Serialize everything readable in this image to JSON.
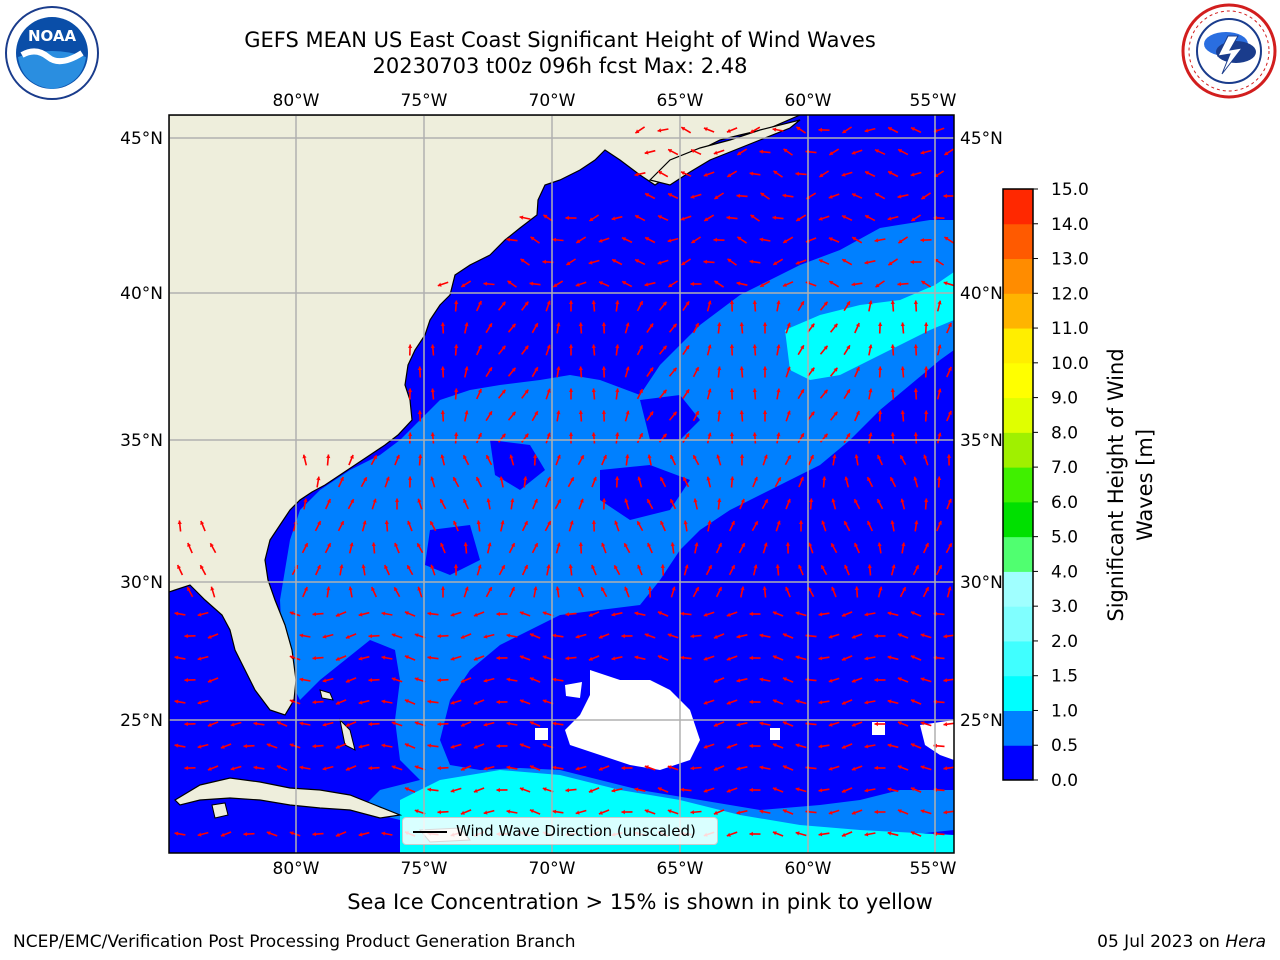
{
  "header": {
    "title_line1": "GEFS MEAN US East Coast Significant Height of Wind Waves",
    "title_line2": "20230703 t00z 096h fcst   Max: 2.48"
  },
  "logos": {
    "left": {
      "icon": "noaa-logo-icon",
      "text": "NOAA"
    },
    "right": {
      "icon": "national-weather-service-logo-icon",
      "text": "NATIONAL WEATHER SERVICE"
    }
  },
  "map": {
    "lon_labels": [
      "80°W",
      "75°W",
      "70°W",
      "65°W",
      "60°W",
      "55°W"
    ],
    "lat_labels": [
      "45°N",
      "40°N",
      "35°N",
      "30°N",
      "25°N"
    ],
    "colors": {
      "land": "#eeeedc",
      "ocean_low": "#0000ff",
      "ocean_mid": "#0080ff",
      "ocean_high": "#00ffff",
      "arrow": "#ff0000",
      "grid": "#b0b0b0"
    }
  },
  "legend": {
    "label": "Wind Wave Direction (unscaled)"
  },
  "colorbar": {
    "title_line1": "Significant Height of Wind",
    "title_line2": "Waves [m]",
    "ticks": [
      "0.0",
      "0.5",
      "1.0",
      "1.5",
      "2.0",
      "3.0",
      "4.0",
      "5.0",
      "6.0",
      "7.0",
      "8.0",
      "9.0",
      "10.0",
      "11.0",
      "12.0",
      "13.0",
      "14.0",
      "15.0"
    ],
    "colors": [
      "#0000ff",
      "#0080ff",
      "#00ffff",
      "#40ffff",
      "#80ffff",
      "#a0ffff",
      "#50ff70",
      "#00e000",
      "#40f000",
      "#a0f000",
      "#e0ff00",
      "#ffff00",
      "#ffee00",
      "#ffb400",
      "#ff8c00",
      "#ff5a00",
      "#ff2800"
    ]
  },
  "notes": {
    "ice": "Sea Ice Concentration > 15% is shown in pink to yellow"
  },
  "footer": {
    "left": "NCEP/EMC/Verification Post Processing Product Generation Branch",
    "right_date": "05 Jul 2023 on ",
    "right_host": "Hera"
  }
}
